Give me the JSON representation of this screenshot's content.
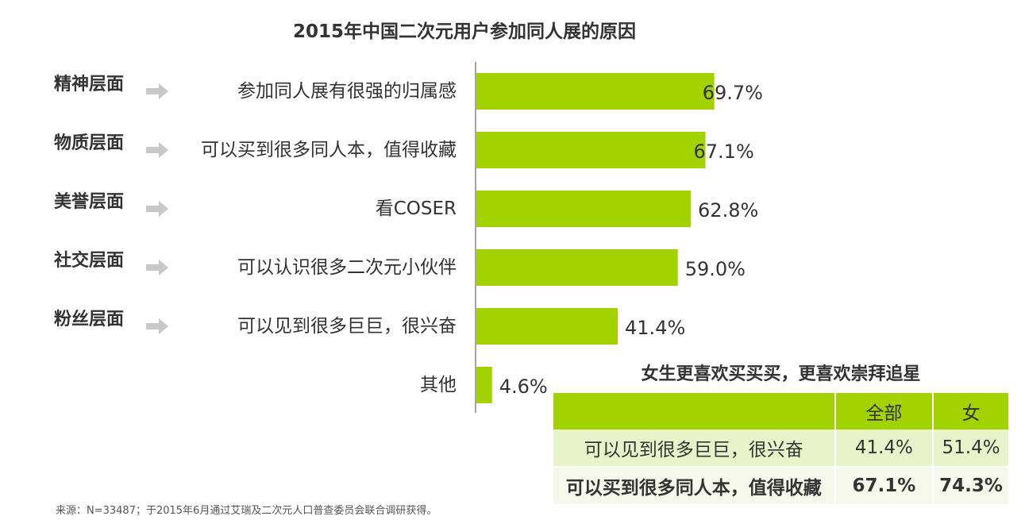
{
  "chart_data": {
    "type": "bar",
    "orientation": "horizontal",
    "title": "2015年中国二次元用户参加同人展的原因",
    "dimensions": [
      "精神层面",
      "物质层面",
      "美誉层面",
      "社交层面",
      "粉丝层面",
      ""
    ],
    "categories": [
      "参加同人展有很强的归属感",
      "可以买到很多同人本，值得收藏",
      "看COSER",
      "可以认识很多二次元小伙伴",
      "可以见到很多巨巨，很兴奋",
      "其他"
    ],
    "values": [
      69.7,
      67.1,
      62.8,
      59.0,
      41.4,
      4.6
    ],
    "value_labels": [
      "69.7%",
      "67.1%",
      "62.8%",
      "59.0%",
      "41.4%",
      "4.6%"
    ],
    "xlim": [
      0,
      70
    ],
    "grid": false,
    "bar_color": "#a2d200"
  },
  "table": {
    "title": "女生更喜欢买买买，更喜欢崇拜追星",
    "headers": [
      "",
      "全部",
      "女"
    ],
    "rows": [
      [
        "可以见到很多巨巨，很兴奋",
        "41.4%",
        "51.4%"
      ],
      [
        "可以买到很多同人本，值得收藏",
        "67.1%",
        "74.3%"
      ]
    ],
    "header_color": "#a2d200"
  },
  "source": "来源：N=33487；于2015年6月通过艾瑞及二次元人口普查委员会联合调研获得。"
}
